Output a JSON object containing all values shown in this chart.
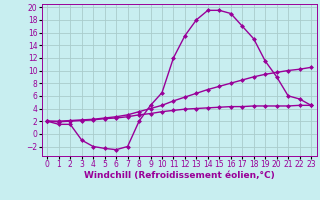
{
  "xlabel": "Windchill (Refroidissement éolien,°C)",
  "background_color": "#c8eef0",
  "line_color": "#990099",
  "grid_color": "#aacccc",
  "xlim": [
    -0.5,
    23.5
  ],
  "ylim": [
    -3.5,
    20.5
  ],
  "xtick_labels": [
    "0",
    "1",
    "2",
    "3",
    "4",
    "5",
    "6",
    "7",
    "8",
    "9",
    "10",
    "11",
    "12",
    "13",
    "14",
    "15",
    "16",
    "17",
    "18",
    "19",
    "20",
    "21",
    "22",
    "23"
  ],
  "xtick_vals": [
    0,
    1,
    2,
    3,
    4,
    5,
    6,
    7,
    8,
    9,
    10,
    11,
    12,
    13,
    14,
    15,
    16,
    17,
    18,
    19,
    20,
    21,
    22,
    23
  ],
  "yticks": [
    -2,
    0,
    2,
    4,
    6,
    8,
    10,
    12,
    14,
    16,
    18,
    20
  ],
  "line1_x": [
    0,
    1,
    2,
    3,
    4,
    5,
    6,
    7,
    8,
    9,
    10,
    11,
    12,
    13,
    14,
    15,
    16,
    17,
    18,
    19,
    20,
    21,
    22,
    23
  ],
  "line1_y": [
    2.0,
    1.5,
    1.5,
    -1.0,
    -2.0,
    -2.3,
    -2.5,
    -2.0,
    2.0,
    4.5,
    6.5,
    12.0,
    15.5,
    18.0,
    19.5,
    19.5,
    19.0,
    17.0,
    15.0,
    11.5,
    9.0,
    6.0,
    5.5,
    4.5
  ],
  "line2_x": [
    0,
    1,
    2,
    3,
    4,
    5,
    6,
    7,
    8,
    9,
    10,
    11,
    12,
    13,
    14,
    15,
    16,
    17,
    18,
    19,
    20,
    21,
    22,
    23
  ],
  "line2_y": [
    2.0,
    2.0,
    2.1,
    2.2,
    2.3,
    2.5,
    2.7,
    3.0,
    3.5,
    4.0,
    4.5,
    5.2,
    5.8,
    6.4,
    7.0,
    7.5,
    8.0,
    8.5,
    9.0,
    9.4,
    9.7,
    10.0,
    10.2,
    10.5
  ],
  "line3_x": [
    0,
    1,
    2,
    3,
    4,
    5,
    6,
    7,
    8,
    9,
    10,
    11,
    12,
    13,
    14,
    15,
    16,
    17,
    18,
    19,
    20,
    21,
    22,
    23
  ],
  "line3_y": [
    2.0,
    1.9,
    2.0,
    2.1,
    2.2,
    2.4,
    2.5,
    2.7,
    3.0,
    3.2,
    3.5,
    3.7,
    3.9,
    4.0,
    4.1,
    4.2,
    4.3,
    4.3,
    4.4,
    4.4,
    4.4,
    4.4,
    4.5,
    4.5
  ],
  "marker": "D",
  "markersize": 2.5,
  "linewidth": 1.0,
  "xlabel_fontsize": 6.5,
  "tick_fontsize": 5.5
}
